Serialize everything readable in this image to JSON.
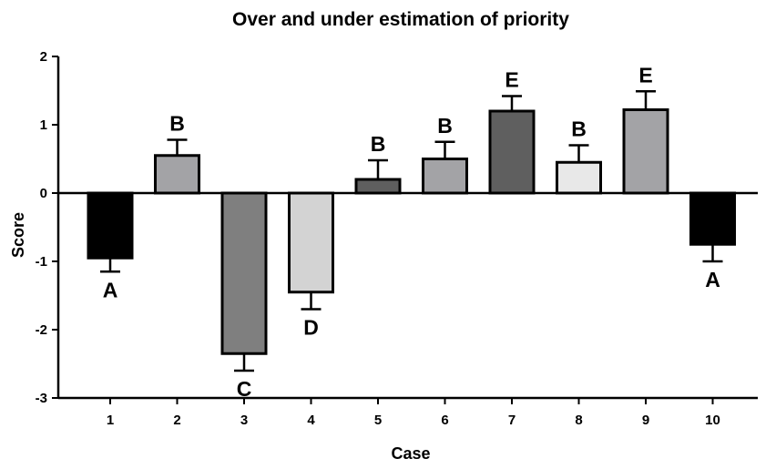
{
  "chart_data": {
    "type": "bar",
    "title": "Over and under estimation of priority",
    "xlabel": "Case",
    "ylabel": "Score",
    "ylim": [
      -3,
      2
    ],
    "yticks": [
      -3,
      -2,
      -1,
      0,
      1,
      2
    ],
    "categories": [
      "1",
      "2",
      "3",
      "4",
      "5",
      "6",
      "7",
      "8",
      "9",
      "10"
    ],
    "values": [
      -0.95,
      0.55,
      -2.35,
      -1.45,
      0.2,
      0.5,
      1.2,
      0.45,
      1.22,
      -0.75
    ],
    "errors": [
      0.2,
      0.23,
      0.25,
      0.25,
      0.28,
      0.25,
      0.22,
      0.25,
      0.27,
      0.25
    ],
    "group_letters": [
      "A",
      "B",
      "C",
      "D",
      "B",
      "B",
      "E",
      "B",
      "E",
      "A"
    ],
    "bar_colors": [
      "#000000",
      "#a3a3a6",
      "#7f7f7f",
      "#d3d3d3",
      "#5f5f5f",
      "#a3a3a6",
      "#5f5f5f",
      "#e8e8e8",
      "#a3a3a6",
      "#000000"
    ],
    "grid": false,
    "legend": "none"
  }
}
